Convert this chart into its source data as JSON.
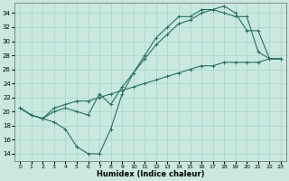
{
  "xlabel": "Humidex (Indice chaleur)",
  "bg_color": "#c8e8e0",
  "line_color": "#2a6e62",
  "grid_color": "#b0d8cc",
  "xlim": [
    -0.5,
    23.5
  ],
  "ylim": [
    13.0,
    35.5
  ],
  "yticks": [
    14,
    16,
    18,
    20,
    22,
    24,
    26,
    28,
    30,
    32,
    34
  ],
  "xticks": [
    0,
    1,
    2,
    3,
    4,
    5,
    6,
    7,
    8,
    9,
    10,
    11,
    12,
    13,
    14,
    15,
    16,
    17,
    18,
    19,
    20,
    21,
    22,
    23
  ],
  "curve1_x": [
    0,
    1,
    2,
    3,
    4,
    5,
    6,
    7,
    8,
    9,
    10,
    11,
    12,
    13,
    14,
    15,
    16,
    17,
    18,
    19,
    20,
    21,
    22,
    23
  ],
  "curve1_y": [
    20.5,
    19.5,
    19.0,
    18.5,
    17.5,
    15.0,
    14.0,
    14.0,
    17.5,
    22.5,
    25.5,
    28.0,
    30.5,
    32.0,
    33.5,
    33.5,
    34.5,
    34.5,
    35.0,
    34.0,
    31.5,
    31.5,
    27.5,
    27.5
  ],
  "curve2_x": [
    0,
    1,
    2,
    3,
    4,
    5,
    6,
    7,
    8,
    9,
    10,
    11,
    12,
    13,
    14,
    15,
    16,
    17,
    18,
    19,
    20,
    21,
    22,
    23
  ],
  "curve2_y": [
    20.5,
    19.5,
    19.0,
    20.0,
    20.5,
    20.0,
    19.5,
    22.5,
    21.0,
    23.5,
    25.5,
    27.5,
    29.5,
    31.0,
    32.5,
    33.0,
    34.0,
    34.5,
    34.0,
    33.5,
    33.5,
    28.5,
    27.5,
    27.5
  ],
  "curve3_x": [
    0,
    1,
    2,
    3,
    4,
    5,
    6,
    7,
    8,
    9,
    10,
    11,
    12,
    13,
    14,
    15,
    16,
    17,
    18,
    19,
    20,
    21,
    22,
    23
  ],
  "curve3_y": [
    20.5,
    19.5,
    19.0,
    20.5,
    21.0,
    21.5,
    21.5,
    22.0,
    22.5,
    23.0,
    23.5,
    24.0,
    24.5,
    25.0,
    25.5,
    26.0,
    26.5,
    26.5,
    27.0,
    27.0,
    27.0,
    27.0,
    27.5,
    27.5
  ]
}
